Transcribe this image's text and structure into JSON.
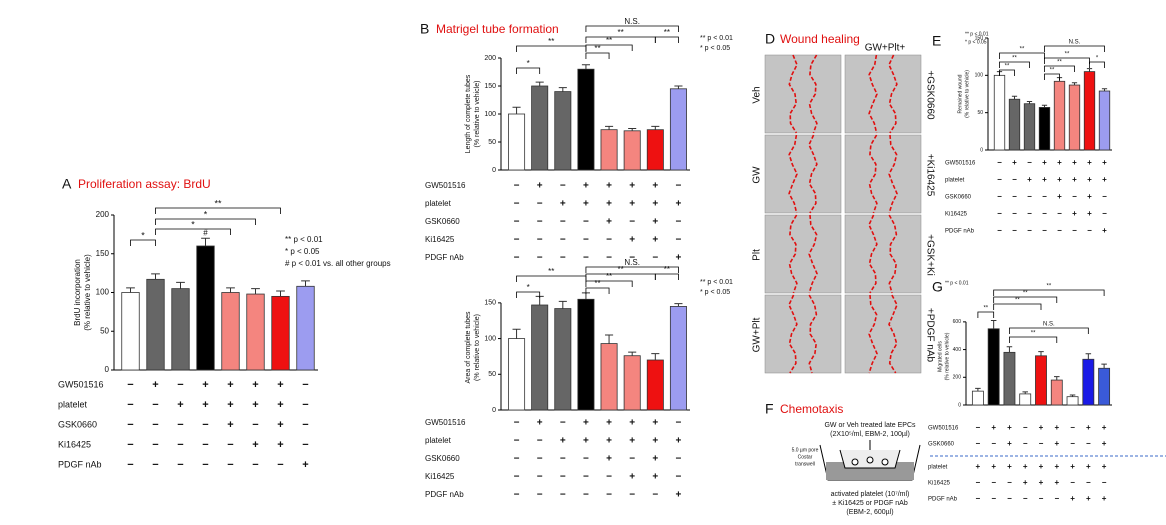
{
  "chart_data": [
    {
      "type": "bar",
      "panel": "A",
      "title": "Proliferation assay: BrdU",
      "ylabel": [
        "BrdU incorporation",
        "(% relative to vehicle)"
      ],
      "categories": [
        null,
        null,
        null,
        null,
        null,
        null,
        null,
        null
      ],
      "values": [
        100,
        117,
        105,
        160,
        100,
        98,
        95,
        108
      ],
      "errors": [
        6,
        7,
        8,
        10,
        6,
        7,
        7,
        7
      ],
      "colors": [
        "#ffffff",
        "#666666",
        "#666666",
        "#000000",
        "#f4857f",
        "#f4857f",
        "#ee1111",
        "#9c9cf0"
      ],
      "ylim": [
        0,
        200
      ],
      "yticks": [
        0,
        50,
        100,
        150,
        200
      ],
      "annotations": [
        "*",
        "*",
        "*",
        "**",
        "#"
      ],
      "legend": [
        "** p < 0.01",
        "* p < 0.05",
        "# p < 0.01 vs. all other groups"
      ],
      "conditions": [
        {
          "label": "GW501516",
          "marks": [
            "−",
            "+",
            "−",
            "+",
            "+",
            "+",
            "+",
            "−"
          ]
        },
        {
          "label": "platelet",
          "marks": [
            "−",
            "−",
            "+",
            "+",
            "+",
            "+",
            "+",
            "−"
          ]
        },
        {
          "label": "GSK0660",
          "marks": [
            "−",
            "−",
            "−",
            "−",
            "+",
            "−",
            "+",
            "−"
          ]
        },
        {
          "label": "Ki16425",
          "marks": [
            "−",
            "−",
            "−",
            "−",
            "−",
            "+",
            "+",
            "−"
          ]
        },
        {
          "label": "PDGF nAb",
          "marks": [
            "−",
            "−",
            "−",
            "−",
            "−",
            "−",
            "−",
            "+"
          ]
        }
      ]
    },
    {
      "type": "bar",
      "panel": "B",
      "title": "Matrigel tube formation",
      "ylabel": [
        "Length of complete tubes",
        "(% relative to vehicle)"
      ],
      "categories": [
        null,
        null,
        null,
        null,
        null,
        null,
        null,
        null
      ],
      "values": [
        100,
        150,
        140,
        180,
        72,
        70,
        72,
        145
      ],
      "errors": [
        12,
        7,
        7,
        8,
        6,
        4,
        6,
        5
      ],
      "colors": [
        "#ffffff",
        "#666666",
        "#666666",
        "#000000",
        "#f4857f",
        "#f4857f",
        "#ee1111",
        "#9c9cf0"
      ],
      "ylim": [
        0,
        200
      ],
      "yticks": [
        0,
        50,
        100,
        150,
        200
      ],
      "annotations": [
        "*",
        "**",
        "**",
        "**",
        "**",
        "**",
        "N.S."
      ],
      "legend": [
        "** p < 0.01",
        "* p < 0.05"
      ],
      "conditions": [
        {
          "label": "GW501516",
          "marks": [
            "−",
            "+",
            "−",
            "+",
            "+",
            "+",
            "+",
            "−"
          ]
        },
        {
          "label": "platelet",
          "marks": [
            "−",
            "−",
            "+",
            "+",
            "+",
            "+",
            "+",
            "+"
          ]
        },
        {
          "label": "GSK0660",
          "marks": [
            "−",
            "−",
            "−",
            "−",
            "+",
            "−",
            "+",
            "−"
          ]
        },
        {
          "label": "Ki16425",
          "marks": [
            "−",
            "−",
            "−",
            "−",
            "−",
            "+",
            "+",
            "−"
          ]
        },
        {
          "label": "PDGF nAb",
          "marks": [
            "−",
            "−",
            "−",
            "−",
            "−",
            "−",
            "−",
            "+"
          ]
        }
      ]
    },
    {
      "type": "bar",
      "ylabel": [
        "Area of complete tubes",
        "(% relative to vehicle)"
      ],
      "categories": [
        null,
        null,
        null,
        null,
        null,
        null,
        null,
        null
      ],
      "values": [
        100,
        147,
        142,
        155,
        93,
        76,
        70,
        145
      ],
      "errors": [
        13,
        12,
        10,
        9,
        12,
        5,
        9,
        4
      ],
      "colors": [
        "#ffffff",
        "#666666",
        "#666666",
        "#000000",
        "#f4857f",
        "#f4857f",
        "#ee1111",
        "#9c9cf0"
      ],
      "ylim": [
        0,
        175
      ],
      "yticks": [
        0,
        50,
        100,
        150
      ],
      "annotations": [
        "*",
        "**",
        "**",
        "**",
        "**",
        "**",
        "N.S."
      ],
      "legend": [
        "** p < 0.01",
        "* p < 0.05"
      ],
      "conditions": [
        {
          "label": "GW501516",
          "marks": [
            "−",
            "+",
            "−",
            "+",
            "+",
            "+",
            "+",
            "−"
          ]
        },
        {
          "label": "platelet",
          "marks": [
            "−",
            "−",
            "+",
            "+",
            "+",
            "+",
            "+",
            "+"
          ]
        },
        {
          "label": "GSK0660",
          "marks": [
            "−",
            "−",
            "−",
            "−",
            "+",
            "−",
            "+",
            "−"
          ]
        },
        {
          "label": "Ki16425",
          "marks": [
            "−",
            "−",
            "−",
            "−",
            "−",
            "+",
            "+",
            "−"
          ]
        },
        {
          "label": "PDGF nAb",
          "marks": [
            "−",
            "−",
            "−",
            "−",
            "−",
            "−",
            "−",
            "+"
          ]
        }
      ]
    },
    {
      "type": "bar",
      "panel": "E",
      "ylabel": [
        "Remained wound",
        "(% relative to vehicle)"
      ],
      "categories": [
        null,
        null,
        null,
        null,
        null,
        null,
        null,
        null
      ],
      "values": [
        100,
        68,
        62,
        57,
        92,
        87,
        105,
        79
      ],
      "errors": [
        5,
        4,
        3,
        3,
        5,
        3,
        4,
        3
      ],
      "colors": [
        "#ffffff",
        "#666666",
        "#666666",
        "#000000",
        "#f4857f",
        "#f4857f",
        "#ee1111",
        "#9c9cf0"
      ],
      "ylim": [
        0,
        150
      ],
      "yticks": [
        0,
        50,
        100,
        150
      ],
      "annotations": [
        "**",
        "**",
        "**",
        "**",
        "**",
        "**",
        "*",
        "N.S."
      ],
      "legend": [
        "** p < 0.01",
        "* p < 0.05"
      ],
      "conditions": [
        {
          "label": "GW501516",
          "marks": [
            "−",
            "+",
            "−",
            "+",
            "+",
            "+",
            "+",
            "+"
          ]
        },
        {
          "label": "platelet",
          "marks": [
            "−",
            "−",
            "+",
            "+",
            "+",
            "+",
            "+",
            "+"
          ]
        },
        {
          "label": "GSK0660",
          "marks": [
            "−",
            "−",
            "−",
            "−",
            "+",
            "−",
            "+",
            "−"
          ]
        },
        {
          "label": "Ki16425",
          "marks": [
            "−",
            "−",
            "−",
            "−",
            "−",
            "+",
            "+",
            "−"
          ]
        },
        {
          "label": "PDGF nAb",
          "marks": [
            "−",
            "−",
            "−",
            "−",
            "−",
            "−",
            "−",
            "+"
          ]
        }
      ]
    },
    {
      "type": "bar",
      "panel": "G",
      "ylabel": [
        "Migrated cells",
        "(% relative to vehicle)"
      ],
      "categories": [
        null,
        null,
        null,
        null,
        null,
        null,
        null,
        null,
        null
      ],
      "values": [
        100,
        550,
        380,
        80,
        355,
        180,
        60,
        330,
        265
      ],
      "errors": [
        20,
        60,
        40,
        15,
        30,
        25,
        12,
        40,
        30
      ],
      "colors": [
        "#ffffff",
        "#000000",
        "#666666",
        "#ffffff",
        "#ee1111",
        "#f4857f",
        "#ffffff",
        "#1a1ae6",
        "#3a5ad8"
      ],
      "ylim": [
        0,
        700
      ],
      "yticks": [
        0,
        200,
        400,
        600
      ],
      "annotations": [
        "**",
        "**",
        "**",
        "**",
        "**",
        "N.S."
      ],
      "legend": [
        "** p < 0.01"
      ],
      "conditions": [
        {
          "label": "GW501516",
          "marks": [
            "−",
            "+",
            "+",
            "−",
            "+",
            "+",
            "−",
            "+",
            "+"
          ]
        },
        {
          "label": "GSK0660",
          "marks": [
            "−",
            "−",
            "+",
            "−",
            "−",
            "+",
            "−",
            "−",
            "+"
          ]
        },
        {
          "label": "platelet",
          "marks": [
            "+",
            "+",
            "+",
            "+",
            "+",
            "+",
            "+",
            "+",
            "+"
          ]
        },
        {
          "label": "Ki16425",
          "marks": [
            "−",
            "−",
            "−",
            "+",
            "+",
            "+",
            "−",
            "−",
            "−"
          ]
        },
        {
          "label": "PDGF nAb",
          "marks": [
            "−",
            "−",
            "−",
            "−",
            "−",
            "−",
            "+",
            "+",
            "+"
          ]
        }
      ]
    }
  ],
  "wound_healing": {
    "panel": "D",
    "title": "Wound healing",
    "column_label": "GW+Plt+",
    "row_labels": [
      "Veh",
      "GW",
      "Plt",
      "GW+Plt"
    ],
    "right_labels": [
      "+GSK0660",
      "+Ki16425",
      "+GSK+Ki",
      "+PDGF nAb"
    ]
  },
  "chemotaxis": {
    "panel": "F",
    "title": "Chemotaxis",
    "top_text": [
      "GW or Veh treated late EPCs",
      "(2X10⁵/ml, EBM-2, 100µl)"
    ],
    "insert_text": [
      "5.0 µm pore",
      "Costar",
      "transwell"
    ],
    "bottom_text": [
      "activated platelet (10⁷/ml)",
      "± Ki16425 or PDGF nAb",
      "(EBM-2, 600µl)"
    ]
  }
}
